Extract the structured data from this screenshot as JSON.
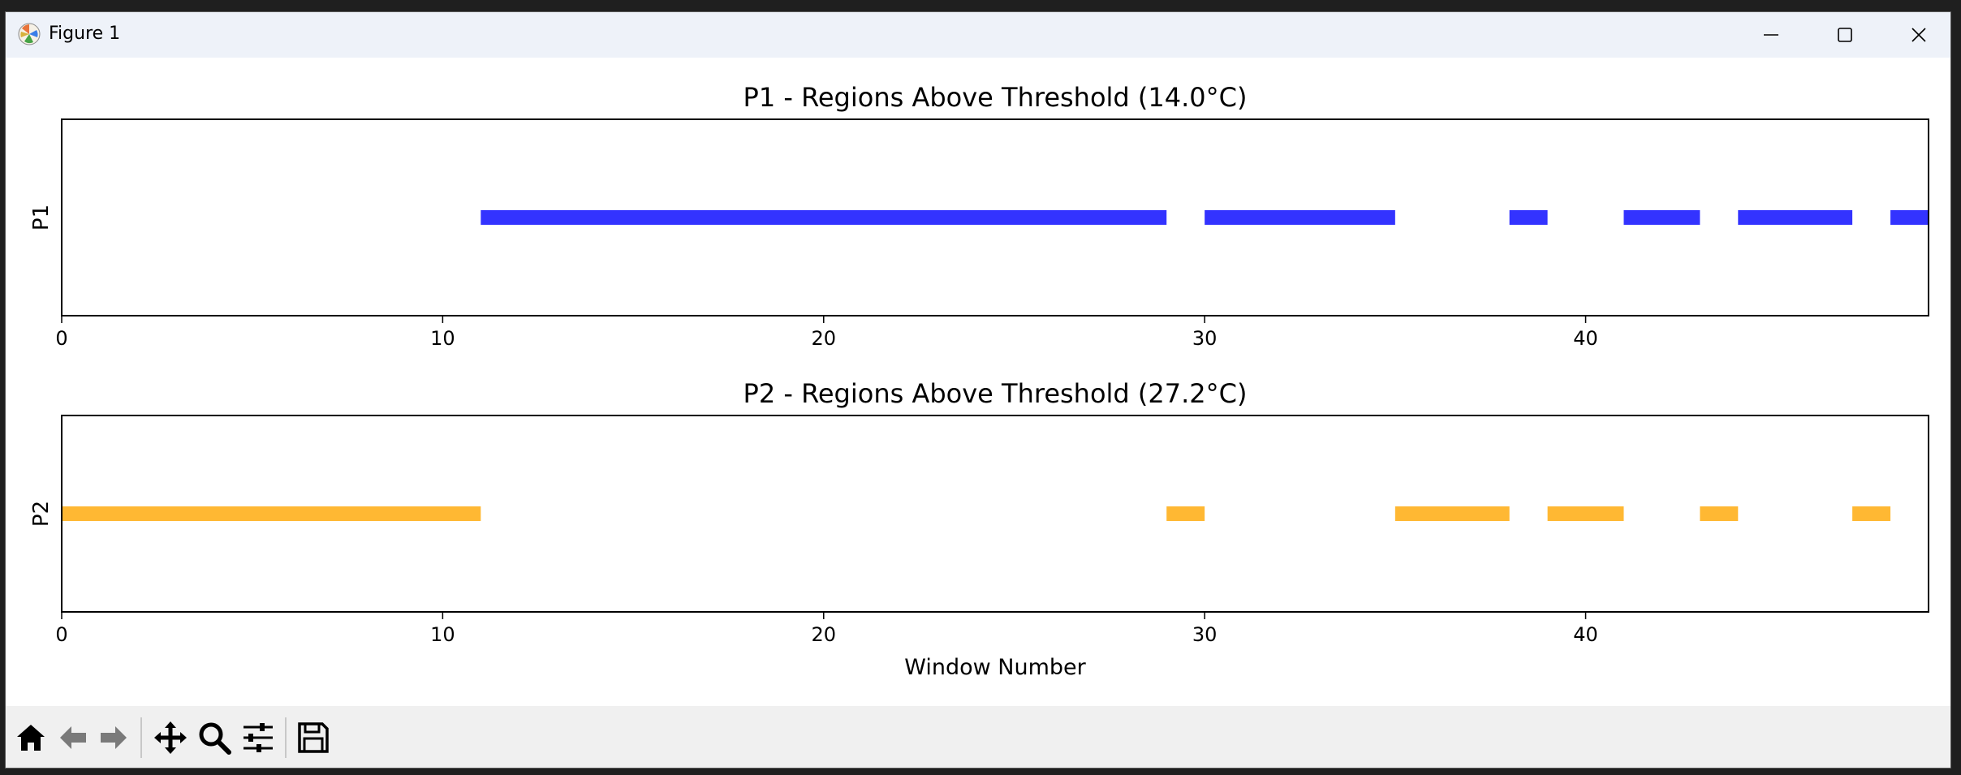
{
  "window": {
    "title": "Figure 1"
  },
  "toolbar": {
    "items": [
      {
        "name": "home-icon"
      },
      {
        "name": "back-arrow-icon"
      },
      {
        "name": "forward-arrow-icon"
      },
      {
        "name": "pan-icon"
      },
      {
        "name": "zoom-icon"
      },
      {
        "name": "configure-subplots-icon"
      },
      {
        "name": "save-icon"
      }
    ]
  },
  "chart_data": [
    {
      "type": "bar",
      "title": "P1 - Regions Above Threshold (14.0°C)",
      "ylabel": "P1",
      "xlabel": "",
      "xlim": [
        0,
        49
      ],
      "xticks": [
        0,
        10,
        20,
        30,
        40
      ],
      "color": "#3333ff",
      "segments": [
        [
          11,
          29
        ],
        [
          30,
          35
        ],
        [
          38,
          39
        ],
        [
          41,
          43
        ],
        [
          44,
          47
        ],
        [
          48,
          49
        ]
      ]
    },
    {
      "type": "bar",
      "title": "P2 - Regions Above Threshold (27.2°C)",
      "ylabel": "P2",
      "xlabel": "Window Number",
      "xlim": [
        0,
        49
      ],
      "xticks": [
        0,
        10,
        20,
        30,
        40
      ],
      "color": "#ffb833",
      "segments": [
        [
          0,
          11
        ],
        [
          29,
          30
        ],
        [
          35,
          38
        ],
        [
          39,
          41
        ],
        [
          43,
          44
        ],
        [
          47,
          48
        ]
      ]
    }
  ]
}
